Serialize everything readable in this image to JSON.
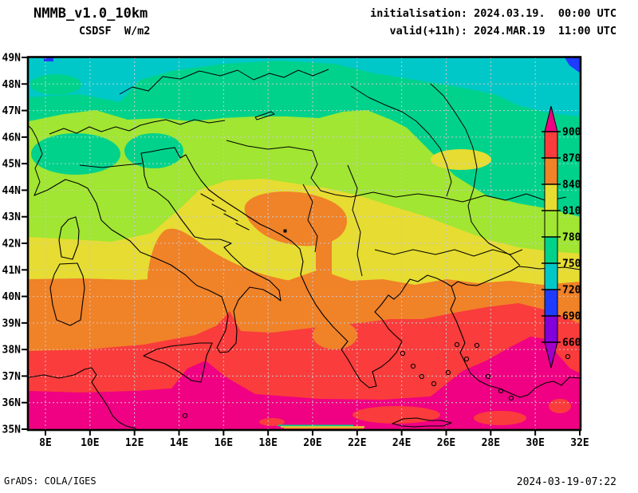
{
  "header": {
    "title_line1": "NMMB_v1.0_10km",
    "title_line2": "CSDSF  W/m2",
    "init_line": "initialisation: 2024.03.19.  00:00 UTC",
    "valid_line": "valid(+11h): 2024.MAR.19  11:00 UTC"
  },
  "footer": {
    "credit": "GrADS: COLA/IGES",
    "timestamp": "2024-03-19-07:22"
  },
  "axes": {
    "lat_ticks": [
      "49N",
      "48N",
      "47N",
      "46N",
      "45N",
      "44N",
      "43N",
      "42N",
      "41N",
      "40N",
      "39N",
      "38N",
      "37N",
      "36N",
      "35N"
    ],
    "lon_ticks": [
      "8E",
      "10E",
      "12E",
      "14E",
      "16E",
      "18E",
      "20E",
      "22E",
      "24E",
      "26E",
      "28E",
      "30E",
      "32E"
    ]
  },
  "colorbar": {
    "tick_labels": [
      "900",
      "870",
      "840",
      "810",
      "780",
      "750",
      "720",
      "690",
      "660"
    ],
    "segments_top_to_bottom": [
      {
        "range": "870-900",
        "color": "#FA3C3C"
      },
      {
        "range": "840-870",
        "color": "#F08228"
      },
      {
        "range": "810-840",
        "color": "#E6DC32"
      },
      {
        "range": "780-810",
        "color": "#A0E632"
      },
      {
        "range": "750-780",
        "color": "#00D28C"
      },
      {
        "range": "720-750",
        "color": "#00C8C8"
      },
      {
        "range": "690-720",
        "color": "#1E3CFF"
      },
      {
        "range": "660-690",
        "color": "#8200DC"
      }
    ],
    "over_color": "#F00082",
    "under_color": "#A000C8"
  },
  "palette": {
    "cyan": "#00C8C8",
    "green": "#00D28C",
    "yellowgreen": "#A0E632",
    "yellow": "#E6DC32",
    "orange": "#F08228",
    "red": "#FA3C3C",
    "magenta": "#F00082",
    "blue": "#1E3CFF",
    "grid": "#C9C9C9",
    "coast": "#000000",
    "frame": "#000000"
  }
}
